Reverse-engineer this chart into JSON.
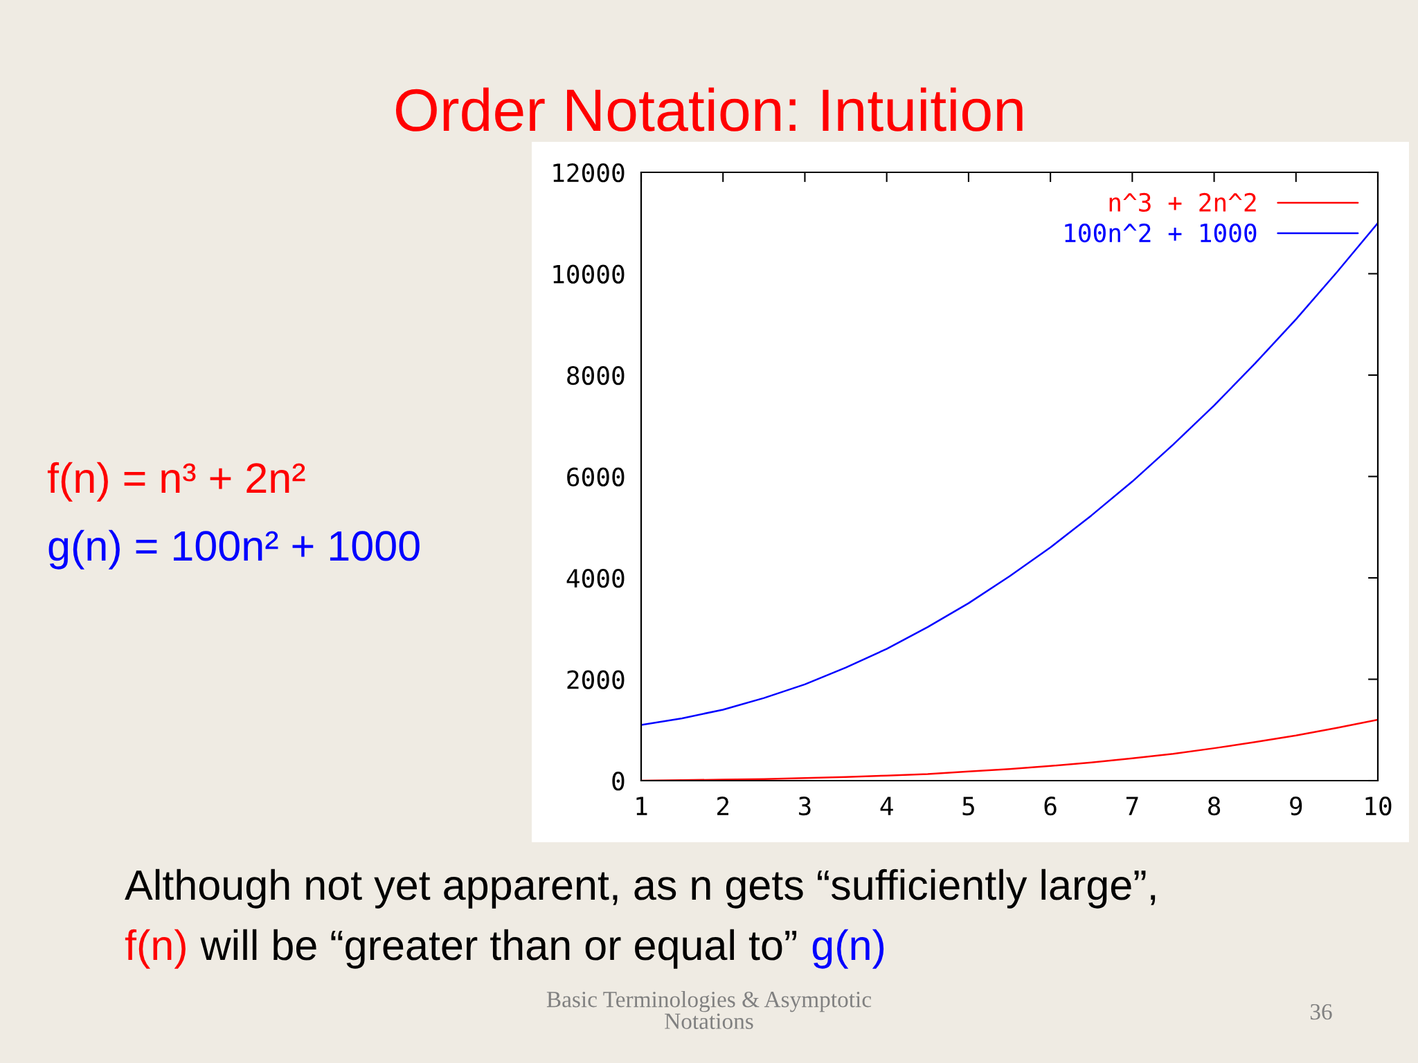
{
  "chart_data": {
    "type": "line",
    "title": "Order Notation: Intuition",
    "x": [
      1,
      1.5,
      2,
      2.5,
      3,
      3.5,
      4,
      4.5,
      5,
      5.5,
      6,
      6.5,
      7,
      7.5,
      8,
      8.5,
      9,
      9.5,
      10
    ],
    "series": [
      {
        "name": "n^3 + 2n^2",
        "color": "#ff0000",
        "values": [
          0,
          10,
          20,
          30,
          50,
          70,
          100,
          130,
          180,
          230,
          290,
          360,
          440,
          530,
          640,
          760,
          890,
          1040,
          1200
        ]
      },
      {
        "name": "100n^2 + 1000",
        "color": "#0000ff",
        "values": [
          1100,
          1230,
          1400,
          1630,
          1900,
          2230,
          2600,
          3030,
          3500,
          4030,
          4600,
          5230,
          5900,
          6630,
          7400,
          8230,
          9100,
          10030,
          11000
        ]
      }
    ],
    "xlim": [
      1,
      10
    ],
    "xticks": [
      1,
      2,
      3,
      4,
      5,
      6,
      7,
      8,
      9,
      10
    ],
    "ylim": [
      0,
      12000
    ],
    "yticks": [
      0,
      2000,
      4000,
      6000,
      8000,
      10000,
      12000
    ],
    "grid": false,
    "legend": "top right",
    "line_style": "solid",
    "annotations": [
      "f(n) = n³ + 2n²",
      "g(n) = 100n² + 1000",
      "Although not yet apparent, as n gets “sufficiently large”,",
      "f(n)",
      "will be “greater than or equal to”",
      "g(n)",
      "Basic Terminologies & Asymptotic\nNotations",
      "36"
    ]
  }
}
